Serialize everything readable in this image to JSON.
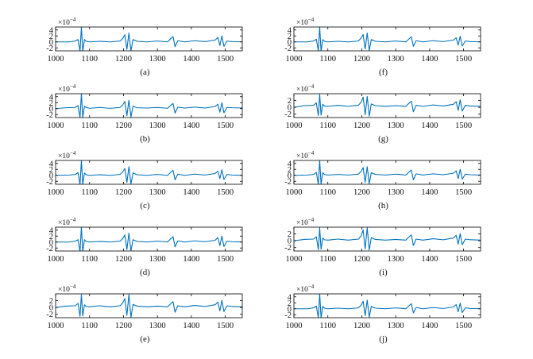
{
  "figure": {
    "line_color": "#0072BD",
    "axis_color": "#000000",
    "exponent_base": "×10",
    "exponent_power": "−4"
  },
  "chart_data": [
    {
      "type": "line",
      "label": "(a)",
      "xlim": [
        1000,
        1550
      ],
      "xticks": [
        1000,
        1100,
        1200,
        1300,
        1400,
        1500
      ],
      "xtick_labels": [
        "1000",
        "1100",
        "1200",
        "1300",
        "1400",
        "1500"
      ],
      "yticks": [
        -2,
        0,
        2,
        4
      ],
      "ytick_labels": [
        "-2",
        "0",
        "2",
        "4"
      ],
      "ylim": [
        -3,
        5
      ],
      "scale_exponent": "×10^-4",
      "x": [
        1000,
        1040,
        1058,
        1066,
        1072,
        1076,
        1080,
        1085,
        1090,
        1100,
        1130,
        1160,
        1190,
        1198,
        1204,
        1210,
        1216,
        1222,
        1228,
        1240,
        1270,
        1300,
        1330,
        1340,
        1346,
        1352,
        1360,
        1380,
        1410,
        1440,
        1470,
        1478,
        1484,
        1490,
        1496,
        1505,
        1520,
        1550
      ],
      "y": [
        0,
        0,
        0.3,
        0.8,
        -3.2,
        5.0,
        -3.2,
        0.8,
        0.2,
        0,
        0.2,
        0,
        0.3,
        1.2,
        2.4,
        -2.5,
        3.0,
        -3.0,
        0.8,
        0.2,
        0,
        0.3,
        0,
        1.2,
        1.8,
        -1.6,
        0.4,
        0,
        0.4,
        0.1,
        0.6,
        1.5,
        -1.2,
        2.0,
        -1.5,
        0.3,
        0.1,
        0
      ]
    },
    {
      "type": "line",
      "label": "(b)",
      "xlim": [
        1000,
        1550
      ],
      "xticks": [
        1000,
        1100,
        1200,
        1300,
        1400,
        1500
      ],
      "xtick_labels": [
        "1000",
        "1100",
        "1200",
        "1300",
        "1400",
        "1500"
      ],
      "yticks": [
        -2,
        0,
        2,
        4
      ],
      "ytick_labels": [
        "-2",
        "0",
        "2",
        "4"
      ],
      "ylim": [
        -3,
        5
      ],
      "scale_exponent": "×10^-4",
      "x": [
        1000,
        1030,
        1058,
        1066,
        1072,
        1076,
        1080,
        1085,
        1090,
        1100,
        1130,
        1160,
        1190,
        1198,
        1204,
        1210,
        1216,
        1222,
        1228,
        1240,
        1270,
        1300,
        1330,
        1340,
        1346,
        1352,
        1360,
        1380,
        1410,
        1440,
        1470,
        1478,
        1484,
        1490,
        1496,
        1505,
        1520,
        1550
      ],
      "y": [
        0,
        0.3,
        0.4,
        1.0,
        -3.0,
        5.0,
        -3.0,
        0.8,
        0.4,
        0.1,
        0.4,
        0.1,
        0.4,
        1.3,
        2.4,
        -2.4,
        2.8,
        -2.8,
        0.8,
        0.3,
        0.2,
        0.4,
        0.1,
        1.2,
        1.7,
        -1.5,
        0.5,
        0.2,
        0.5,
        0.2,
        0.7,
        1.5,
        -1.2,
        2.0,
        -1.4,
        0.4,
        0.3,
        0.2
      ]
    },
    {
      "type": "line",
      "label": "(c)",
      "xlim": [
        1000,
        1550
      ],
      "xticks": [
        1000,
        1100,
        1200,
        1300,
        1400,
        1500
      ],
      "xtick_labels": [
        "1000",
        "1100",
        "1200",
        "1300",
        "1400",
        "1500"
      ],
      "yticks": [
        -2,
        0,
        2,
        4
      ],
      "ytick_labels": [
        "-2",
        "0",
        "2",
        "4"
      ],
      "ylim": [
        -3,
        5
      ],
      "scale_exponent": "×10^-4",
      "x": [
        1000,
        1040,
        1058,
        1066,
        1072,
        1076,
        1080,
        1085,
        1090,
        1100,
        1130,
        1160,
        1190,
        1198,
        1204,
        1210,
        1216,
        1222,
        1228,
        1240,
        1270,
        1300,
        1330,
        1340,
        1346,
        1352,
        1360,
        1380,
        1410,
        1440,
        1470,
        1478,
        1484,
        1490,
        1496,
        1505,
        1520,
        1550
      ],
      "y": [
        0,
        0.1,
        0.3,
        0.9,
        -3.1,
        5.0,
        -3.1,
        0.8,
        0.2,
        0,
        0.2,
        0,
        0.3,
        1.2,
        2.3,
        -2.4,
        2.9,
        -2.9,
        0.8,
        0.2,
        0,
        0.3,
        0,
        1.1,
        1.7,
        -1.5,
        0.4,
        0,
        0.4,
        0.1,
        0.6,
        1.4,
        -1.1,
        1.9,
        -1.4,
        0.3,
        0.1,
        0
      ]
    },
    {
      "type": "line",
      "label": "(d)",
      "xlim": [
        1000,
        1550
      ],
      "xticks": [
        1000,
        1100,
        1200,
        1300,
        1400,
        1500
      ],
      "xtick_labels": [
        "1000",
        "1100",
        "1200",
        "1300",
        "1400",
        "1500"
      ],
      "yticks": [
        -2,
        0,
        2,
        4
      ],
      "ytick_labels": [
        "-2",
        "0",
        "2",
        "4"
      ],
      "ylim": [
        -3,
        5
      ],
      "scale_exponent": "×10^-4",
      "x": [
        1000,
        1040,
        1058,
        1066,
        1072,
        1076,
        1080,
        1085,
        1090,
        1100,
        1130,
        1160,
        1190,
        1198,
        1204,
        1210,
        1216,
        1222,
        1228,
        1240,
        1270,
        1300,
        1330,
        1340,
        1346,
        1352,
        1360,
        1380,
        1410,
        1440,
        1470,
        1478,
        1484,
        1490,
        1496,
        1505,
        1520,
        1550
      ],
      "y": [
        0,
        0,
        0.3,
        0.8,
        -3.2,
        5.0,
        -3.2,
        0.8,
        0.2,
        0,
        0.2,
        0,
        0.3,
        1.2,
        2.4,
        -2.5,
        3.0,
        -3.0,
        0.8,
        0.2,
        0,
        0.3,
        0,
        1.2,
        1.8,
        -1.6,
        0.4,
        0,
        0.4,
        0.1,
        0.6,
        1.5,
        -1.2,
        2.0,
        -1.5,
        0.3,
        0.1,
        0
      ]
    },
    {
      "type": "line",
      "label": "(e)",
      "xlim": [
        1000,
        1550
      ],
      "xticks": [
        1000,
        1100,
        1200,
        1300,
        1400,
        1500
      ],
      "xtick_labels": [
        "1000",
        "1100",
        "1200",
        "1300",
        "1400",
        "1500"
      ],
      "yticks": [
        -2,
        0,
        2
      ],
      "ytick_labels": [
        "-2",
        "0",
        "2"
      ],
      "ylim": [
        -3,
        4
      ],
      "scale_exponent": "×10^-4",
      "x": [
        1000,
        1030,
        1058,
        1066,
        1072,
        1076,
        1080,
        1085,
        1090,
        1100,
        1130,
        1160,
        1190,
        1198,
        1204,
        1210,
        1216,
        1222,
        1228,
        1240,
        1270,
        1300,
        1330,
        1340,
        1346,
        1352,
        1360,
        1380,
        1410,
        1440,
        1470,
        1478,
        1484,
        1490,
        1496,
        1505,
        1520,
        1550
      ],
      "y": [
        0,
        0.4,
        0.5,
        1.2,
        -2.6,
        3.8,
        -2.5,
        0.8,
        0.3,
        0.2,
        0.5,
        0.2,
        0.5,
        1.4,
        2.6,
        -2.3,
        3.8,
        -2.9,
        0.9,
        0.4,
        0.2,
        0.4,
        0.2,
        1.2,
        1.7,
        -1.4,
        0.5,
        0.2,
        0.6,
        0.3,
        0.8,
        1.6,
        -1.0,
        2.1,
        -1.2,
        0.5,
        0.3,
        0.2
      ]
    },
    {
      "type": "line",
      "label": "(f)",
      "xlim": [
        1000,
        1550
      ],
      "xticks": [
        1000,
        1100,
        1200,
        1300,
        1400,
        1500
      ],
      "xtick_labels": [
        "1000",
        "1100",
        "1200",
        "1300",
        "1400",
        "1500"
      ],
      "yticks": [
        -2,
        0,
        2,
        4
      ],
      "ytick_labels": [
        "-2",
        "0",
        "2",
        "4"
      ],
      "ylim": [
        -3,
        5
      ],
      "scale_exponent": "×10^-4",
      "x": [
        1000,
        1040,
        1058,
        1066,
        1072,
        1076,
        1080,
        1085,
        1090,
        1100,
        1130,
        1160,
        1190,
        1198,
        1204,
        1210,
        1216,
        1222,
        1228,
        1240,
        1270,
        1300,
        1330,
        1340,
        1346,
        1352,
        1360,
        1380,
        1410,
        1440,
        1470,
        1478,
        1484,
        1490,
        1496,
        1505,
        1520,
        1550
      ],
      "y": [
        0,
        0,
        0.3,
        0.9,
        -3.0,
        5.0,
        -3.1,
        0.8,
        0.2,
        0,
        0.2,
        0,
        0.3,
        1.3,
        2.5,
        -2.4,
        3.0,
        -2.9,
        0.8,
        0.2,
        0,
        0.3,
        0,
        1.1,
        1.7,
        -1.5,
        0.4,
        0,
        0.4,
        0.1,
        0.6,
        1.4,
        -1.1,
        1.9,
        -1.4,
        0.3,
        0.1,
        0
      ]
    },
    {
      "type": "line",
      "label": "(g)",
      "xlim": [
        1000,
        1550
      ],
      "xticks": [
        1000,
        1100,
        1200,
        1300,
        1400,
        1500
      ],
      "xtick_labels": [
        "1000",
        "1100",
        "1200",
        "1300",
        "1400",
        "1500"
      ],
      "yticks": [
        -2,
        0,
        2
      ],
      "ytick_labels": [
        "-2",
        "0",
        "2"
      ],
      "ylim": [
        -3,
        4
      ],
      "scale_exponent": "×10^-4",
      "x": [
        1000,
        1030,
        1058,
        1066,
        1072,
        1076,
        1080,
        1085,
        1090,
        1100,
        1130,
        1160,
        1190,
        1198,
        1204,
        1210,
        1216,
        1222,
        1228,
        1240,
        1270,
        1300,
        1330,
        1340,
        1346,
        1352,
        1360,
        1380,
        1410,
        1440,
        1470,
        1478,
        1484,
        1490,
        1496,
        1505,
        1520,
        1550
      ],
      "y": [
        0,
        0.5,
        0.6,
        1.3,
        -2.4,
        3.8,
        -2.3,
        0.9,
        0.4,
        0.3,
        0.6,
        0.3,
        0.6,
        1.5,
        3.0,
        -2.2,
        3.2,
        -2.6,
        1.0,
        0.5,
        0.3,
        0.5,
        0.3,
        1.3,
        1.8,
        -1.3,
        0.6,
        0.3,
        0.7,
        0.4,
        0.9,
        1.7,
        -0.9,
        2.2,
        -1.1,
        0.6,
        0.4,
        0.3
      ]
    },
    {
      "type": "line",
      "label": "(h)",
      "xlim": [
        1000,
        1550
      ],
      "xticks": [
        1000,
        1100,
        1200,
        1300,
        1400,
        1500
      ],
      "xtick_labels": [
        "1000",
        "1100",
        "1200",
        "1300",
        "1400",
        "1500"
      ],
      "yticks": [
        -2,
        0,
        2,
        4
      ],
      "ytick_labels": [
        "-2",
        "0",
        "2",
        "4"
      ],
      "ylim": [
        -3,
        5
      ],
      "scale_exponent": "×10^-4",
      "x": [
        1000,
        1040,
        1058,
        1066,
        1072,
        1076,
        1080,
        1085,
        1090,
        1100,
        1130,
        1160,
        1190,
        1198,
        1204,
        1210,
        1216,
        1222,
        1228,
        1240,
        1270,
        1300,
        1330,
        1340,
        1346,
        1352,
        1360,
        1380,
        1410,
        1440,
        1470,
        1478,
        1484,
        1490,
        1496,
        1505,
        1520,
        1550
      ],
      "y": [
        0,
        0.1,
        0.3,
        1.0,
        -3.0,
        5.0,
        -3.0,
        0.9,
        0.3,
        0.1,
        0.3,
        0.1,
        0.4,
        1.3,
        2.6,
        -2.3,
        2.9,
        -2.8,
        0.9,
        0.3,
        0.1,
        0.4,
        0.1,
        1.2,
        1.8,
        -1.5,
        0.5,
        0.1,
        0.5,
        0.2,
        0.7,
        1.5,
        -1.1,
        2.0,
        -1.3,
        0.4,
        0.2,
        0.1
      ]
    },
    {
      "type": "line",
      "label": "(i)",
      "xlim": [
        1000,
        1550
      ],
      "xticks": [
        1000,
        1100,
        1200,
        1300,
        1400,
        1500
      ],
      "xtick_labels": [
        "1000",
        "1100",
        "1200",
        "1300",
        "1400",
        "1500"
      ],
      "yticks": [
        -2,
        0,
        2
      ],
      "ytick_labels": [
        "-2",
        "0",
        "2"
      ],
      "ylim": [
        -3,
        4
      ],
      "scale_exponent": "×10^-4",
      "x": [
        1000,
        1030,
        1058,
        1066,
        1072,
        1076,
        1080,
        1085,
        1090,
        1100,
        1130,
        1160,
        1190,
        1198,
        1204,
        1210,
        1216,
        1222,
        1228,
        1240,
        1270,
        1300,
        1330,
        1340,
        1346,
        1352,
        1360,
        1380,
        1410,
        1440,
        1470,
        1478,
        1484,
        1490,
        1496,
        1505,
        1520,
        1550
      ],
      "y": [
        0,
        0.4,
        0.5,
        1.2,
        -2.6,
        3.8,
        -2.5,
        0.8,
        0.3,
        0.2,
        0.5,
        0.2,
        0.5,
        1.4,
        3.2,
        -2.4,
        3.8,
        -2.7,
        0.9,
        0.4,
        0.2,
        0.4,
        0.2,
        1.2,
        1.7,
        -1.4,
        0.5,
        0.2,
        0.6,
        0.3,
        0.8,
        1.6,
        -1.0,
        2.1,
        -1.2,
        0.5,
        0.3,
        0.2
      ]
    },
    {
      "type": "line",
      "label": "(j)",
      "xlim": [
        1000,
        1550
      ],
      "xticks": [
        1000,
        1100,
        1200,
        1300,
        1400,
        1500
      ],
      "xtick_labels": [
        "1000",
        "1100",
        "1200",
        "1300",
        "1400",
        "1500"
      ],
      "yticks": [
        -2,
        0,
        2,
        4
      ],
      "ytick_labels": [
        "-2",
        "0",
        "2",
        "4"
      ],
      "ylim": [
        -3,
        5
      ],
      "scale_exponent": "×10^-4",
      "x": [
        1000,
        1040,
        1058,
        1066,
        1072,
        1076,
        1080,
        1085,
        1090,
        1100,
        1130,
        1160,
        1190,
        1198,
        1204,
        1210,
        1216,
        1222,
        1228,
        1240,
        1270,
        1300,
        1330,
        1340,
        1346,
        1352,
        1360,
        1380,
        1410,
        1440,
        1470,
        1478,
        1484,
        1490,
        1496,
        1505,
        1520,
        1550
      ],
      "y": [
        0,
        0,
        0.3,
        0.9,
        -3.0,
        5.0,
        -3.0,
        0.8,
        0.2,
        0,
        0.2,
        0,
        0.3,
        1.2,
        2.5,
        -2.3,
        2.9,
        -2.8,
        0.8,
        0.2,
        0,
        0.3,
        0,
        1.1,
        1.7,
        -1.4,
        0.4,
        0,
        0.4,
        0.1,
        0.6,
        1.4,
        -1.0,
        1.9,
        -1.3,
        0.3,
        0.1,
        0
      ]
    }
  ]
}
